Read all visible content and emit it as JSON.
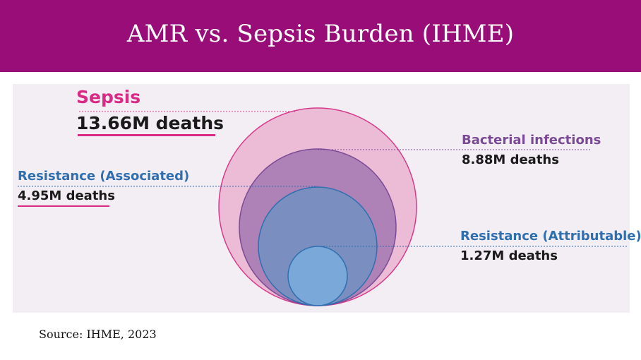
{
  "header": {
    "title": "AMR vs. Sepsis Burden (IHME)"
  },
  "colors": {
    "header_bg": "#980d77",
    "panel_bg": "#f3edf4",
    "sepsis": "#d92a86",
    "bacterial": "#7a4a94",
    "resistance": "#2f6fb0"
  },
  "diagram": {
    "sepsis": {
      "name": "Sepsis",
      "value": "13.66M deaths"
    },
    "bacterial_infections": {
      "name": "Bacterial infections",
      "value": "8.88M deaths"
    },
    "resistance_associated": {
      "name": "Resistance (Associated)",
      "value": "4.95M deaths"
    },
    "resistance_attributable": {
      "name": "Resistance (Attributable)",
      "value": "1.27M deaths"
    }
  },
  "footer": {
    "source": "Source: IHME, 2023"
  }
}
